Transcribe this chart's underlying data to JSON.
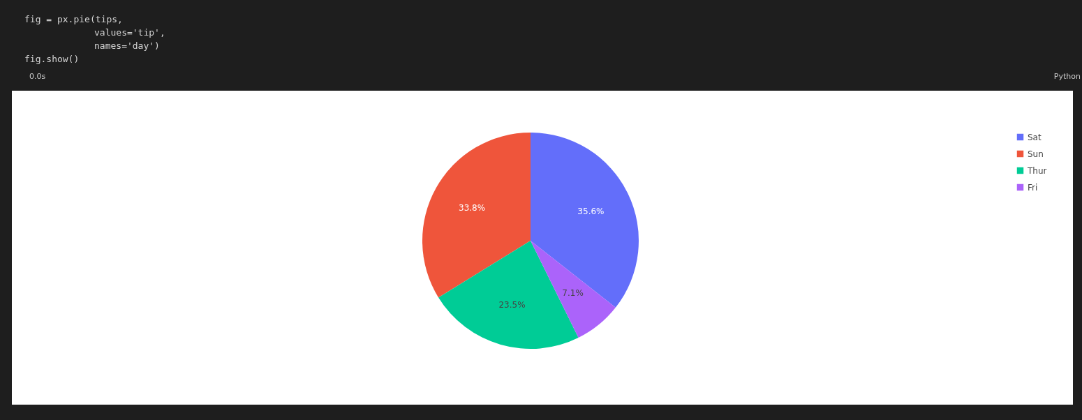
{
  "chart_data": {
    "type": "pie",
    "categories": [
      "Sat",
      "Sun",
      "Thur",
      "Fri"
    ],
    "values": [
      35.6,
      33.8,
      23.5,
      7.1
    ],
    "colors": [
      "#636efa",
      "#ef553b",
      "#00cc96",
      "#ab63fa"
    ],
    "value_labels": [
      "35.6%",
      "33.8%",
      "23.5%",
      "7.1%"
    ],
    "legend": "top right",
    "annotations": [
      "fig = px.pie(tips,",
      "values='tip',",
      "names='day')",
      "fig.show()",
      "0.0s",
      "Python"
    ]
  }
}
